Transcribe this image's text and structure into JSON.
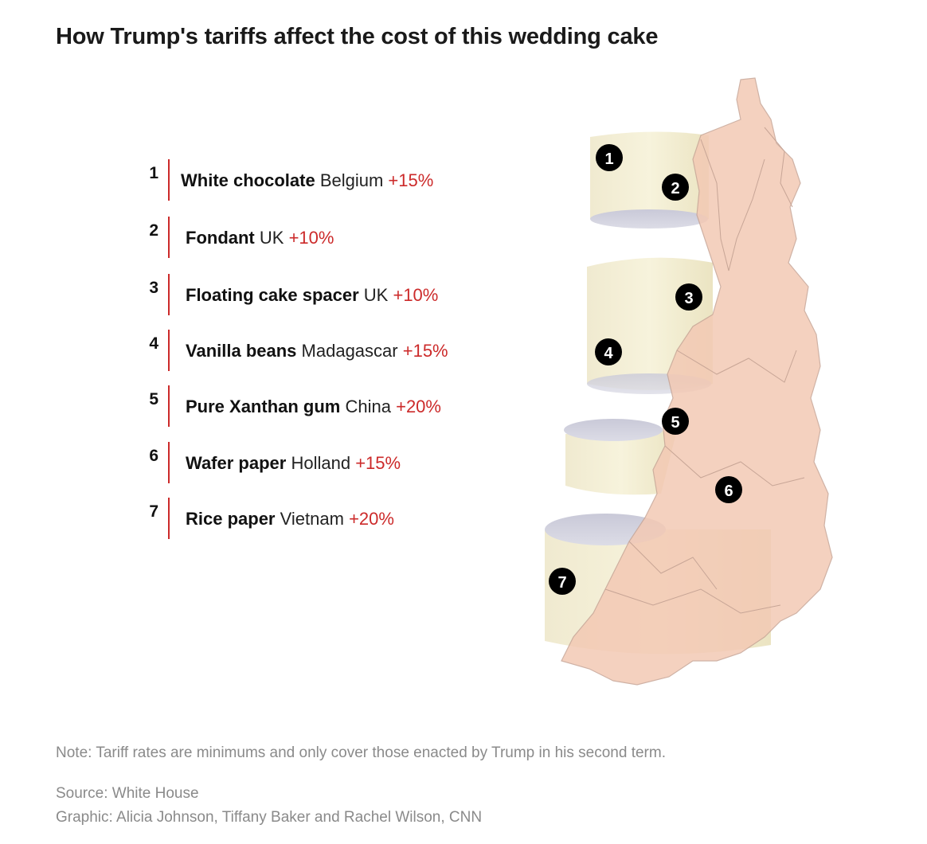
{
  "title": "How Trump's tariffs affect the cost of this wedding cake",
  "items": [
    {
      "num": "1",
      "name": "White chocolate",
      "country": "Belgium",
      "rate": "+15%"
    },
    {
      "num": "2",
      "name": "Fondant",
      "country": "UK",
      "rate": "+10%"
    },
    {
      "num": "3",
      "name": "Floating cake spacer",
      "country": "UK",
      "rate": "+10%"
    },
    {
      "num": "4",
      "name": "Vanilla beans",
      "country": "Madagascar",
      "rate": "+15%"
    },
    {
      "num": "5",
      "name": "Pure Xanthan gum",
      "country": "China",
      "rate": "+20%"
    },
    {
      "num": "6",
      "name": "Wafer paper",
      "country": "Holland",
      "rate": "+15%"
    },
    {
      "num": "7",
      "name": "Rice paper",
      "country": "Vietnam",
      "rate": "+20%"
    }
  ],
  "markers": [
    "1",
    "2",
    "3",
    "4",
    "5",
    "6",
    "7"
  ],
  "colors": {
    "accent": "#cc2a2a",
    "tier": "#f4efcf",
    "tier_shadow": "#c8c8d6",
    "paper": "#f3c9b4",
    "marker": "#000000"
  },
  "note": "Note: Tariff rates are minimums and only cover those enacted by Trump in his second term.",
  "source": "Source: White House",
  "credit": "Graphic: Alicia Johnson, Tiffany Baker and Rachel Wilson, CNN"
}
